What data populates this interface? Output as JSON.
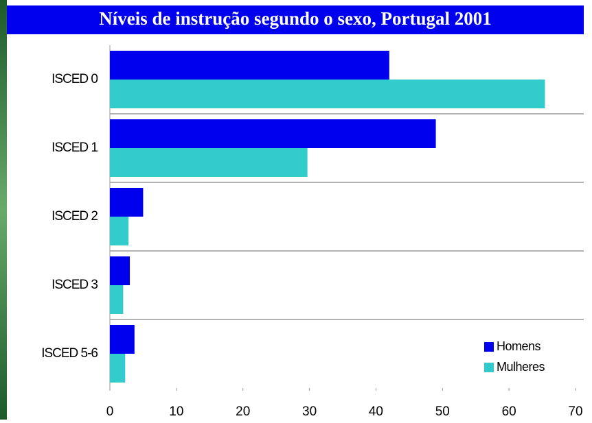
{
  "chart_data": {
    "type": "hbar",
    "title": "Níveis de instrução segundo o sexo, Portugal 2001",
    "categories": [
      "ISCED 0",
      "ISCED 1",
      "ISCED 2",
      "ISCED 3",
      "ISCED 5-6"
    ],
    "series": [
      {
        "name": "Homens",
        "color": "#0000ee",
        "values": [
          42,
          49,
          5,
          3,
          3.7
        ]
      },
      {
        "name": "Mulheres",
        "color": "#33cccc",
        "values": [
          65.4,
          29.7,
          2.8,
          2,
          2.3
        ]
      }
    ],
    "xlim": [
      0,
      70
    ],
    "xticks": [
      0,
      10,
      20,
      30,
      40,
      50,
      60,
      70
    ],
    "legend": "lower right"
  }
}
